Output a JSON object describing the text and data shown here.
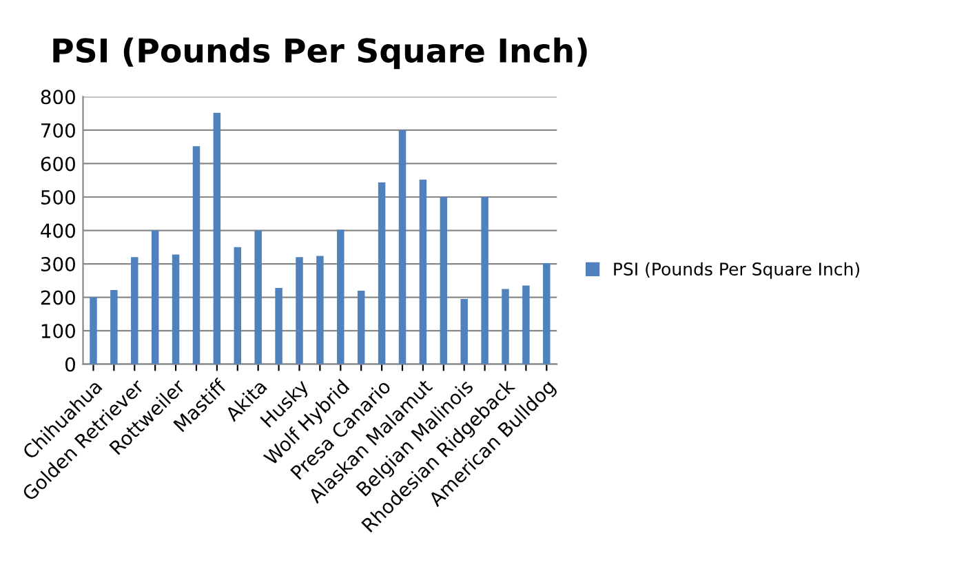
{
  "chart_data": {
    "type": "bar",
    "title": "PSI (Pounds Per Square Inch)",
    "categories": [
      "Chihuahua",
      null,
      "Golden Retriever",
      null,
      "Rottweiler",
      null,
      "Mastiff",
      null,
      "Akita",
      null,
      "Husky",
      null,
      "Wolf Hybrid",
      null,
      "Presa Canario",
      null,
      "Alaskan Malamut",
      null,
      "Belgian Malinois",
      null,
      "Rhodesian Ridgeback",
      null,
      "American Bulldog"
    ],
    "series": [
      {
        "name": "PSI (Pounds Per Square Inch)",
        "color": "#4f81bd",
        "values": [
          200,
          222,
          320,
          400,
          328,
          652,
          752,
          350,
          400,
          228,
          320,
          324,
          402,
          220,
          544,
          700,
          552,
          500,
          195,
          500,
          225,
          235,
          302
        ]
      }
    ],
    "ylim": [
      0,
      800
    ],
    "yticks": [
      0,
      100,
      200,
      300,
      400,
      500,
      600,
      700,
      800
    ],
    "grid": "y",
    "legend": "right"
  }
}
